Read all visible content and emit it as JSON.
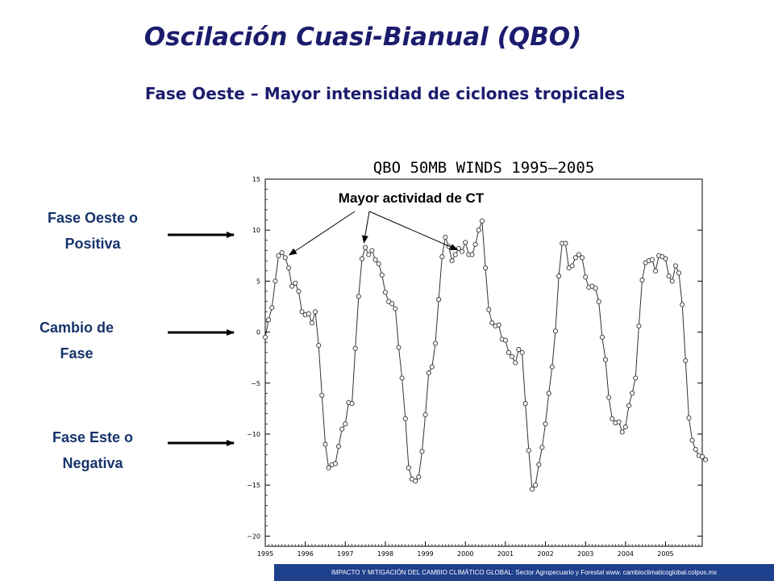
{
  "slide": {
    "title": "Oscilación Cuasi-Bianual (QBO)",
    "subtitle": "Fase Oeste – Mayor intensidad de ciclones tropicales",
    "labels": {
      "west_phase": "Fase Oeste o\nPositiva",
      "phase_change": "Cambio de\nFase",
      "east_phase": "Fase Este o\nNegativa"
    },
    "annotation": "Mayor actividad de CT",
    "footer": "IMPACTO Y MITIGACIÓN DEL CAMBIO CLIMÁTICO GLOBAL: Sector Agropecuario y Forestal www. cambioclimaticoglobal.colpos.mx"
  },
  "colors": {
    "title": "#1c1c6e",
    "footer_bg": "#1d3f8c",
    "line": "#333333",
    "marker_fill": "#ffffff"
  },
  "chart_data": {
    "type": "line",
    "title": "QBO 50MB WINDS 1995–2005",
    "xlabel": "",
    "ylabel": "",
    "xlim": [
      1995.0,
      2005.917
    ],
    "ylim": [
      -21,
      15
    ],
    "xticks": [
      "1995",
      "1996",
      "1997",
      "1998",
      "1999",
      "2000",
      "2001",
      "2002",
      "2003",
      "2004",
      "2005"
    ],
    "yticks": [
      "15",
      "10",
      "5",
      "0",
      "−5",
      "−10",
      "−15",
      "−20"
    ],
    "grid": false,
    "markers": "open circles",
    "x_start": "1995-01",
    "x_step": "monthly",
    "series": [
      {
        "values": [
          -0.5,
          1.2,
          2.4,
          5.0,
          7.5,
          7.8,
          7.3,
          6.3,
          4.5,
          4.8,
          4.0,
          2.0,
          1.7,
          1.8,
          0.9,
          2.0,
          -1.3,
          -6.2,
          -11.0,
          -13.3,
          -13.0,
          -12.9,
          -11.2,
          -9.5,
          -9.0,
          -6.9,
          -7.0,
          -1.6,
          3.5,
          7.2,
          8.3,
          7.6,
          8.0,
          7.1,
          6.7,
          5.6,
          3.9,
          3.0,
          2.8,
          2.3,
          -1.5,
          -4.5,
          -8.5,
          -13.3,
          -14.4,
          -14.6,
          -14.2,
          -11.7,
          -8.1,
          -4.0,
          -3.4,
          -1.1,
          3.2,
          7.4,
          9.3,
          8.4,
          7.0,
          7.6,
          8.2,
          7.9,
          8.8,
          7.6,
          7.6,
          8.6,
          10.0,
          10.9,
          6.3,
          2.2,
          0.9,
          0.6,
          0.7,
          -0.7,
          -0.8,
          -2.0,
          -2.4,
          -3.0,
          -1.7,
          -2.0,
          -7.0,
          -11.6,
          -15.4,
          -15.0,
          -13.0,
          -11.3,
          -9.0,
          -6.0,
          -3.4,
          0.1,
          5.5,
          8.7,
          8.7,
          6.3,
          6.5,
          7.3,
          7.6,
          7.3,
          5.4,
          4.4,
          4.5,
          4.3,
          3.0,
          -0.5,
          -2.7,
          -6.4,
          -8.5,
          -8.9,
          -8.8,
          -9.8,
          -9.3,
          -7.2,
          -6.0,
          -4.5,
          0.6,
          5.1,
          6.8,
          7.0,
          7.1,
          6.0,
          7.5,
          7.4,
          7.2,
          5.5,
          5.0,
          6.5,
          5.8,
          2.7,
          -2.8,
          -8.4,
          -10.6,
          -11.5,
          -12.1,
          -12.2,
          -12.5
        ]
      }
    ],
    "annotation_targets": [
      {
        "date": "1995-07",
        "value": 7.3
      },
      {
        "date": "1997-07",
        "value": 8.3
      },
      {
        "date": "1999-12",
        "value": 7.9
      }
    ]
  }
}
